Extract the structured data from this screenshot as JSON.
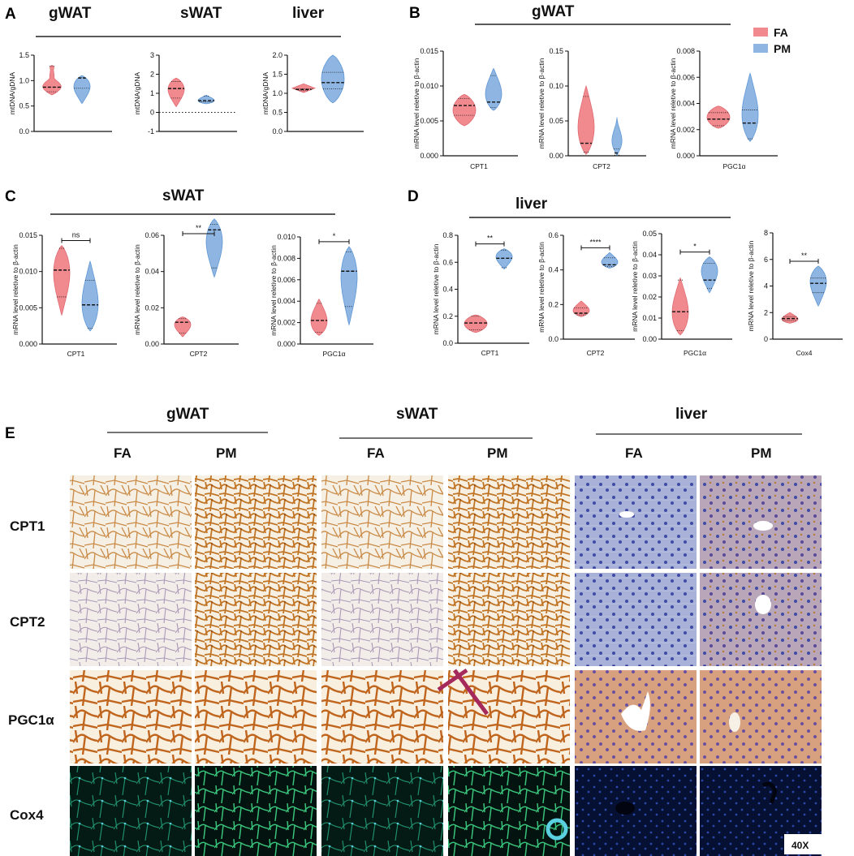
{
  "colors": {
    "FA": "#f08a8f",
    "PM": "#8fb6e2",
    "FA_edge": "#e06a72",
    "PM_edge": "#5e97d6"
  },
  "legend": {
    "items": [
      "FA",
      "PM"
    ]
  },
  "chart_data": [
    {
      "type": "violin",
      "panel": "A",
      "panel_label": "A",
      "group_title": "gWAT",
      "ylabel": "mtDNA/gDNA",
      "ylim": [
        0,
        1.5
      ],
      "yticks": [
        "0.0",
        "0.5",
        "1.0",
        "1.5"
      ],
      "categories": [
        ""
      ],
      "series": [
        {
          "name": "FA",
          "min": 0.72,
          "q1": 0.78,
          "median": 0.87,
          "q3": 1.28,
          "max": 1.3,
          "shape": "bimodal"
        },
        {
          "name": "PM",
          "min": 0.55,
          "q1": 0.85,
          "median": 1.05,
          "q3": 1.06,
          "max": 1.1,
          "shape": "top"
        }
      ]
    },
    {
      "type": "violin",
      "panel": "A2",
      "group_title": "sWAT",
      "ylabel": "mtDNA/gDNA",
      "ylim": [
        -1,
        3
      ],
      "yticks": [
        "-1",
        "0",
        "1",
        "2",
        "3"
      ],
      "zero_dotted": true,
      "categories": [
        ""
      ],
      "series": [
        {
          "name": "FA",
          "min": 0.3,
          "q1": 0.75,
          "median": 1.25,
          "q3": 1.62,
          "max": 1.8,
          "shape": "top"
        },
        {
          "name": "PM",
          "min": 0.45,
          "q1": 0.55,
          "median": 0.62,
          "q3": 0.85,
          "max": 0.9,
          "shape": "bottom"
        }
      ]
    },
    {
      "type": "violin",
      "panel": "A3",
      "group_title": "liver",
      "ylabel": "mtDNA/gDNA",
      "ylim": [
        0,
        2.0
      ],
      "yticks": [
        "0.0",
        "0.5",
        "1.0",
        "1.5",
        "2.0"
      ],
      "categories": [
        ""
      ],
      "series": [
        {
          "name": "FA",
          "min": 1.02,
          "q1": 1.07,
          "median": 1.1,
          "q3": 1.12,
          "max": 1.25,
          "shape": "diamond"
        },
        {
          "name": "PM",
          "min": 0.75,
          "q1": 1.12,
          "median": 1.28,
          "q3": 1.55,
          "max": 2.0,
          "shape": "wide"
        }
      ]
    },
    {
      "type": "violin",
      "panel": "B",
      "panel_label": "B",
      "ylabel": "mRNA level reletive to β-actin",
      "ylim": [
        0,
        0.015
      ],
      "yticks": [
        "0.000",
        "0.005",
        "0.010",
        "0.015"
      ],
      "categories": [
        "CPT1"
      ],
      "series": [
        {
          "name": "FA",
          "min": 0.0043,
          "q1": 0.0058,
          "median": 0.0072,
          "q3": 0.0082,
          "max": 0.0088,
          "shape": "wide"
        },
        {
          "name": "PM",
          "min": 0.0065,
          "q1": 0.0069,
          "median": 0.0077,
          "q3": 0.0115,
          "max": 0.0125,
          "shape": "bottom"
        }
      ]
    },
    {
      "type": "violin",
      "panel": "B2",
      "ylabel": "mRNA level reletive to β-actin",
      "ylim": [
        0,
        0.15
      ],
      "yticks": [
        "0.00",
        "0.05",
        "0.10",
        "0.15"
      ],
      "categories": [
        "CPT2"
      ],
      "series": [
        {
          "name": "FA",
          "min": 0.002,
          "q1": 0.005,
          "median": 0.018,
          "q3": 0.085,
          "max": 0.1,
          "shape": "bottom"
        },
        {
          "name": "PM",
          "min": 0.0,
          "q1": 0.001,
          "median": 0.004,
          "q3": 0.01,
          "max": 0.055,
          "shape": "thin"
        }
      ]
    },
    {
      "type": "violin",
      "panel": "B3",
      "ylabel": "mRNA level reletive to β-actin",
      "ylim": [
        0,
        0.008
      ],
      "yticks": [
        "0.000",
        "0.002",
        "0.004",
        "0.006",
        "0.008"
      ],
      "categories": [
        "PGC1α"
      ],
      "series": [
        {
          "name": "FA",
          "min": 0.0021,
          "q1": 0.0023,
          "median": 0.0028,
          "q3": 0.0033,
          "max": 0.0038,
          "shape": "wide"
        },
        {
          "name": "PM",
          "min": 0.0011,
          "q1": 0.0013,
          "median": 0.0025,
          "q3": 0.0035,
          "max": 0.0063,
          "shape": "bottom"
        }
      ]
    },
    {
      "type": "line_header",
      "panel": "B_title",
      "group_title": "gWAT"
    },
    {
      "type": "violin",
      "panel": "C",
      "panel_label": "C",
      "group_title": "sWAT",
      "ylabel": "mRNA level reletive to β-actin",
      "ylim": [
        0,
        0.015
      ],
      "yticks": [
        "0.000",
        "0.005",
        "0.010",
        "0.015"
      ],
      "categories": [
        "CPT1"
      ],
      "significance": "ns",
      "series": [
        {
          "name": "FA",
          "min": 0.004,
          "q1": 0.0065,
          "median": 0.0102,
          "q3": 0.0132,
          "max": 0.0136,
          "shape": "top"
        },
        {
          "name": "PM",
          "min": 0.0018,
          "q1": 0.0022,
          "median": 0.0054,
          "q3": 0.0088,
          "max": 0.0114,
          "shape": "bottom"
        }
      ]
    },
    {
      "type": "violin",
      "panel": "C2",
      "ylabel": "mRNA level reletive to β-actin",
      "ylim": [
        0,
        0.06
      ],
      "yticks": [
        "0.00",
        "0.02",
        "0.04",
        "0.06"
      ],
      "categories": [
        "CPT2"
      ],
      "significance": "**",
      "series": [
        {
          "name": "FA",
          "min": 0.004,
          "q1": 0.006,
          "median": 0.012,
          "q3": 0.014,
          "max": 0.015,
          "shape": "top"
        },
        {
          "name": "PM",
          "min": 0.037,
          "q1": 0.042,
          "median": 0.063,
          "q3": 0.066,
          "max": 0.069,
          "shape": "top"
        }
      ]
    },
    {
      "type": "violin",
      "panel": "C3",
      "ylabel": "mRNA level reletive to β-actin",
      "ylim": [
        0,
        0.01
      ],
      "yticks": [
        "0.000",
        "0.002",
        "0.004",
        "0.006",
        "0.008",
        "0.010"
      ],
      "categories": [
        "PGC1α"
      ],
      "significance": "*",
      "series": [
        {
          "name": "FA",
          "min": 0.0008,
          "q1": 0.0011,
          "median": 0.0022,
          "q3": 0.0038,
          "max": 0.0042,
          "shape": "bottom"
        },
        {
          "name": "PM",
          "min": 0.0018,
          "q1": 0.0035,
          "median": 0.0068,
          "q3": 0.0086,
          "max": 0.0091,
          "shape": "top"
        }
      ]
    },
    {
      "type": "violin",
      "panel": "D",
      "panel_label": "D",
      "group_title": "liver",
      "ylabel": "mRNA level reletive to β-actin",
      "ylim": [
        0,
        0.8
      ],
      "yticks": [
        "0.0",
        "0.2",
        "0.4",
        "0.6",
        "0.8"
      ],
      "categories": [
        "CPT1"
      ],
      "significance": "**",
      "series": [
        {
          "name": "FA",
          "min": 0.08,
          "q1": 0.1,
          "median": 0.15,
          "q3": 0.2,
          "max": 0.21,
          "shape": "wide"
        },
        {
          "name": "PM",
          "min": 0.55,
          "q1": 0.56,
          "median": 0.63,
          "q3": 0.69,
          "max": 0.7,
          "shape": "top"
        }
      ]
    },
    {
      "type": "violin",
      "panel": "D2",
      "ylabel": "mRNA level reletive to β-actin",
      "ylim": [
        0,
        0.6
      ],
      "yticks": [
        "0.0",
        "0.2",
        "0.4",
        "0.6"
      ],
      "categories": [
        "CPT2"
      ],
      "significance": "****",
      "series": [
        {
          "name": "FA",
          "min": 0.13,
          "q1": 0.14,
          "median": 0.15,
          "q3": 0.18,
          "max": 0.22,
          "shape": "bottom"
        },
        {
          "name": "PM",
          "min": 0.41,
          "q1": 0.42,
          "median": 0.43,
          "q3": 0.47,
          "max": 0.5,
          "shape": "bottom"
        }
      ]
    },
    {
      "type": "violin",
      "panel": "D3",
      "ylabel": "mRNA level reletive to β-actin",
      "ylim": [
        0,
        0.05
      ],
      "yticks": [
        "0.00",
        "0.01",
        "0.02",
        "0.03",
        "0.04",
        "0.05"
      ],
      "categories": [
        "PGC1α"
      ],
      "significance": "*",
      "series": [
        {
          "name": "FA",
          "min": 0.002,
          "q1": 0.004,
          "median": 0.013,
          "q3": 0.028,
          "max": 0.029,
          "shape": "bottom"
        },
        {
          "name": "PM",
          "min": 0.022,
          "q1": 0.024,
          "median": 0.028,
          "q3": 0.036,
          "max": 0.039,
          "shape": "top"
        }
      ]
    },
    {
      "type": "violin",
      "panel": "D4",
      "ylabel": "mRNA level reletive to β-actin",
      "ylim": [
        0,
        8
      ],
      "yticks": [
        "0",
        "2",
        "4",
        "6",
        "8"
      ],
      "categories": [
        "Cox4"
      ],
      "significance": "**",
      "series": [
        {
          "name": "FA",
          "min": 1.2,
          "q1": 1.4,
          "median": 1.55,
          "q3": 1.7,
          "max": 2.0,
          "shape": "bottom"
        },
        {
          "name": "PM",
          "min": 2.5,
          "q1": 3.5,
          "median": 4.2,
          "q3": 4.6,
          "max": 5.5,
          "shape": "top"
        }
      ]
    }
  ],
  "panelE": {
    "label": "E",
    "groups": [
      "gWAT",
      "sWAT",
      "liver"
    ],
    "columns": [
      "FA",
      "PM",
      "FA",
      "PM",
      "FA",
      "PM"
    ],
    "rows": [
      "CPT1",
      "CPT2",
      "PGC1α",
      "Cox4"
    ],
    "magnification": "40X"
  }
}
